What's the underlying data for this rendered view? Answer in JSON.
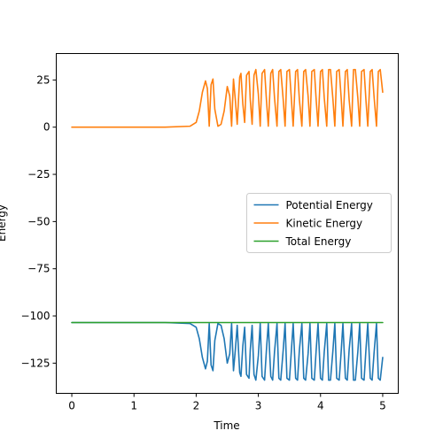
{
  "chart_data": {
    "type": "line",
    "title": "",
    "xlabel": "Time",
    "ylabel": "Energy",
    "xlim": [
      -0.25,
      5.25
    ],
    "ylim": [
      -141,
      39
    ],
    "xticks": [
      0,
      1,
      2,
      3,
      4,
      5
    ],
    "yticks": [
      25,
      0,
      -25,
      -50,
      -75,
      -100,
      -125
    ],
    "grid": false,
    "legend": {
      "position": "center-right"
    },
    "colors": {
      "potential": "#1f77b4",
      "kinetic": "#ff7f0e",
      "total": "#2ca02c"
    },
    "series": [
      {
        "name": "Potential Energy",
        "color": "#1f77b4",
        "x": [
          0,
          0.5,
          1.0,
          1.5,
          1.9,
          2.0,
          2.05,
          2.1,
          2.15,
          2.18,
          2.21,
          2.24,
          2.27,
          2.3,
          2.35,
          2.4,
          2.45,
          2.5,
          2.54,
          2.57,
          2.6,
          2.63,
          2.66,
          2.7,
          2.72,
          2.75,
          2.78,
          2.81,
          2.85,
          2.87,
          2.9,
          2.93,
          2.96,
          3.0,
          3.03,
          3.06,
          3.1,
          3.13,
          3.16,
          3.2,
          3.23,
          3.26,
          3.3,
          3.33,
          3.36,
          3.4,
          3.43,
          3.46,
          3.5,
          3.53,
          3.56,
          3.6,
          3.63,
          3.66,
          3.7,
          3.73,
          3.76,
          3.8,
          3.83,
          3.86,
          3.9,
          3.93,
          3.96,
          4.0,
          4.03,
          4.06,
          4.1,
          4.13,
          4.16,
          4.2,
          4.23,
          4.26,
          4.3,
          4.33,
          4.36,
          4.4,
          4.43,
          4.46,
          4.5,
          4.53,
          4.56,
          4.6,
          4.63,
          4.66,
          4.7,
          4.73,
          4.76,
          4.8,
          4.83,
          4.86,
          4.9,
          4.93,
          4.96,
          5.0
        ],
        "y": [
          -103.5,
          -103.5,
          -103.5,
          -103.5,
          -104,
          -106,
          -112,
          -122,
          -128,
          -124,
          -104,
          -126,
          -129,
          -113,
          -104,
          -105,
          -112,
          -125,
          -120,
          -104,
          -129,
          -118,
          -105,
          -130,
          -132,
          -116,
          -106,
          -131,
          -133,
          -118,
          -105,
          -131,
          -134,
          -121,
          -104,
          -132,
          -134,
          -118,
          -104,
          -132,
          -134,
          -119,
          -104,
          -133,
          -134,
          -118,
          -104,
          -133,
          -134,
          -119,
          -104,
          -133,
          -134,
          -118,
          -104,
          -133,
          -134,
          -120,
          -104,
          -133,
          -134,
          -118,
          -104,
          -133,
          -134,
          -119,
          -104,
          -134,
          -134,
          -118,
          -104,
          -133,
          -134,
          -120,
          -104,
          -133,
          -134,
          -118,
          -104,
          -134,
          -134,
          -119,
          -104,
          -133,
          -134,
          -118,
          -104,
          -133,
          -134,
          -120,
          -104,
          -133,
          -134,
          -122
        ]
      },
      {
        "name": "Kinetic Energy",
        "color": "#ff7f0e",
        "x": [
          0,
          0.5,
          1.0,
          1.5,
          1.9,
          2.0,
          2.05,
          2.1,
          2.15,
          2.18,
          2.21,
          2.24,
          2.27,
          2.3,
          2.35,
          2.4,
          2.45,
          2.5,
          2.54,
          2.57,
          2.6,
          2.63,
          2.66,
          2.7,
          2.72,
          2.75,
          2.78,
          2.81,
          2.85,
          2.87,
          2.9,
          2.93,
          2.96,
          3.0,
          3.03,
          3.06,
          3.1,
          3.13,
          3.16,
          3.2,
          3.23,
          3.26,
          3.3,
          3.33,
          3.36,
          3.4,
          3.43,
          3.46,
          3.5,
          3.53,
          3.56,
          3.6,
          3.63,
          3.66,
          3.7,
          3.73,
          3.76,
          3.8,
          3.83,
          3.86,
          3.9,
          3.93,
          3.96,
          4.0,
          4.03,
          4.06,
          4.1,
          4.13,
          4.16,
          4.2,
          4.23,
          4.26,
          4.3,
          4.33,
          4.36,
          4.4,
          4.43,
          4.46,
          4.5,
          4.53,
          4.56,
          4.6,
          4.63,
          4.66,
          4.7,
          4.73,
          4.76,
          4.8,
          4.83,
          4.86,
          4.9,
          4.93,
          4.96,
          5.0
        ],
        "y": [
          0,
          0,
          0,
          0,
          0.5,
          2.5,
          8.5,
          18.5,
          24.5,
          20.5,
          0.5,
          22.5,
          25.5,
          9.5,
          0.5,
          1.5,
          8.5,
          21.5,
          16.5,
          0.5,
          25.5,
          14.5,
          1.5,
          26.5,
          28.5,
          12.5,
          2.5,
          27.5,
          29.5,
          14.5,
          1.5,
          27.5,
          30.5,
          17.5,
          0.5,
          28.5,
          30.5,
          14.5,
          0.5,
          28.5,
          30.5,
          15.5,
          0.5,
          29.5,
          30.5,
          14.5,
          0.5,
          29.5,
          30.5,
          15.5,
          0.5,
          29.5,
          30.5,
          14.5,
          0.5,
          29.5,
          30.5,
          16.5,
          0.5,
          29.5,
          30.5,
          14.5,
          0.5,
          29.5,
          30.5,
          15.5,
          0.5,
          30.5,
          30.5,
          14.5,
          0.5,
          29.5,
          30.5,
          16.5,
          0.5,
          29.5,
          30.5,
          14.5,
          0.5,
          30.5,
          30.5,
          15.5,
          0.5,
          29.5,
          30.5,
          14.5,
          0.5,
          29.5,
          30.5,
          16.5,
          0.5,
          29.5,
          30.5,
          18.5
        ]
      },
      {
        "name": "Total Energy",
        "color": "#2ca02c",
        "x": [
          0,
          5.0
        ],
        "y": [
          -103.5,
          -103.5
        ]
      }
    ]
  }
}
